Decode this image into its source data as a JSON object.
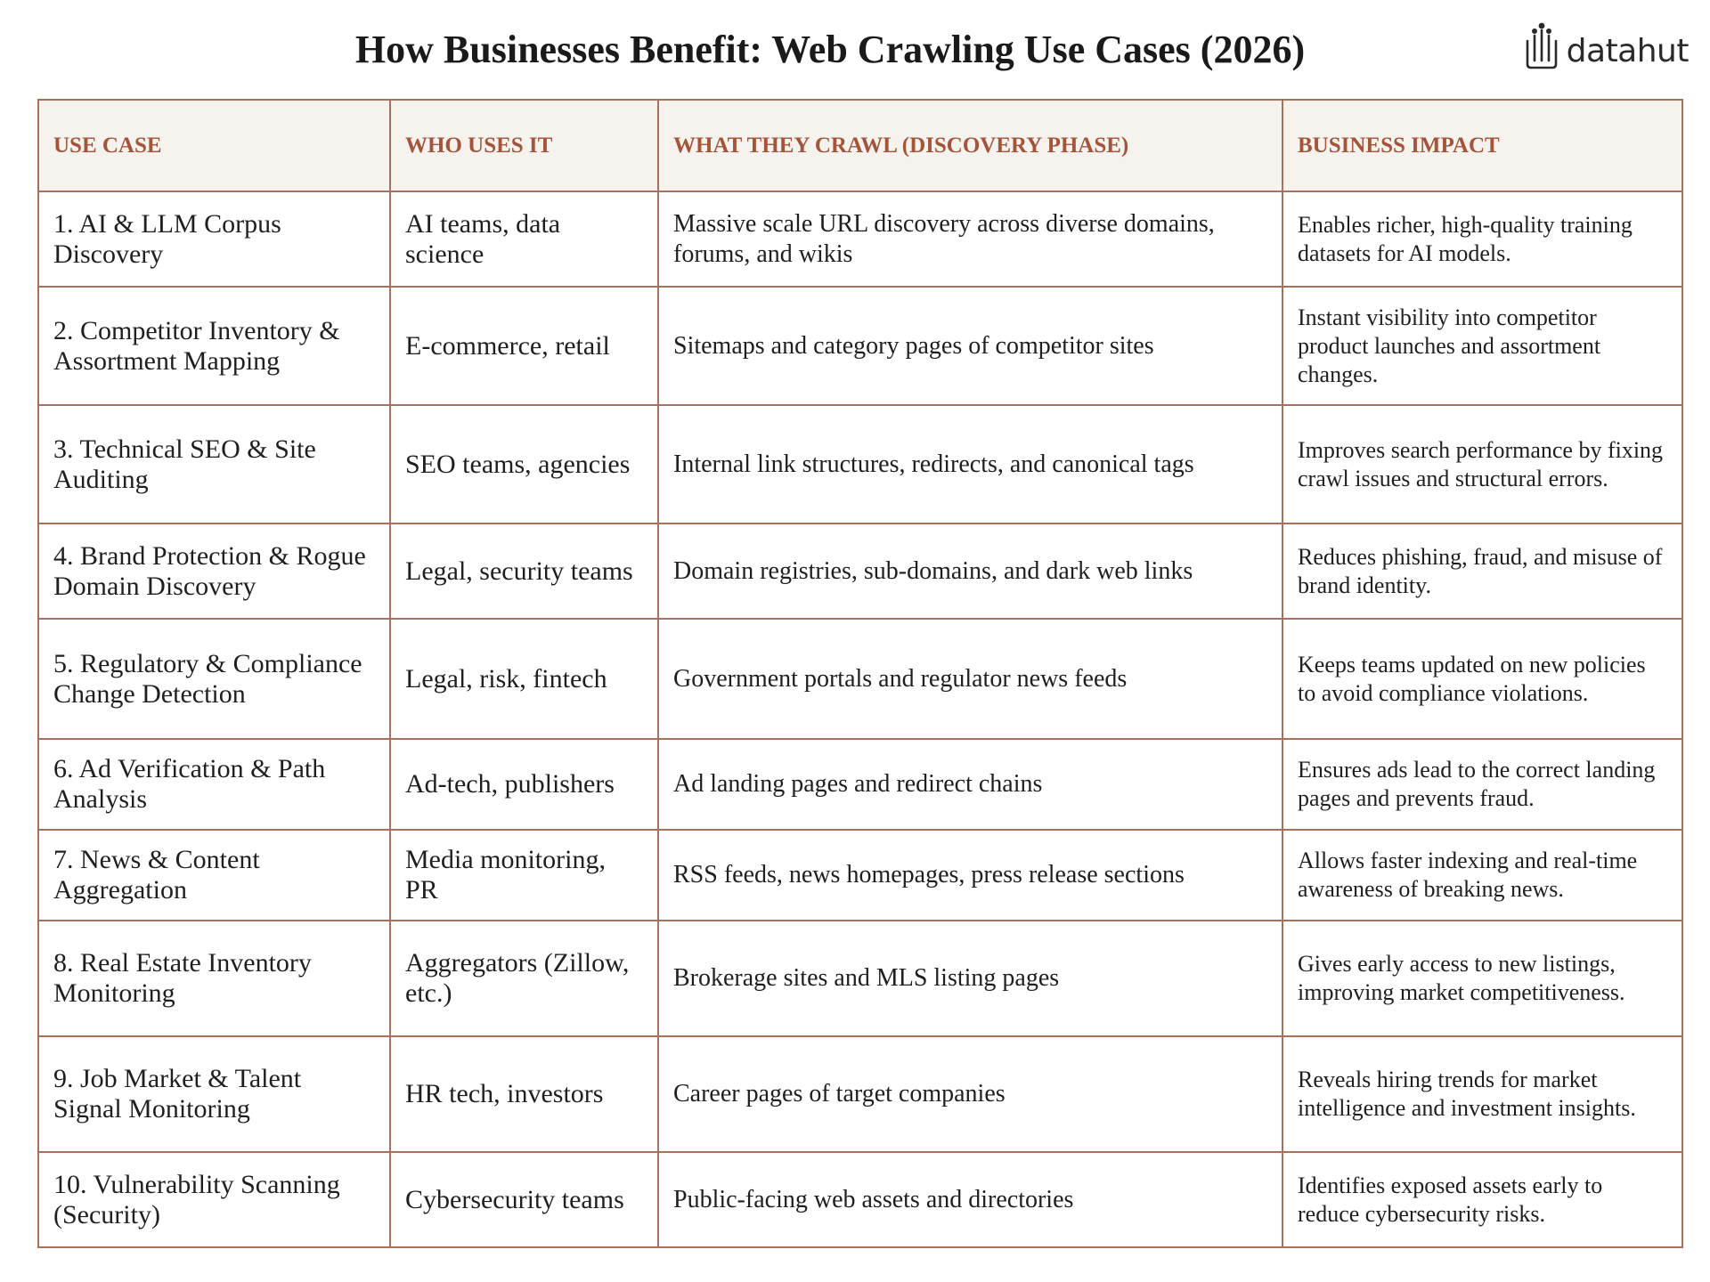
{
  "page": {
    "title": "How Businesses Benefit: Web Crawling Use Cases (2026)"
  },
  "logo": {
    "text": "datahut",
    "icon": "datahut-logo-icon"
  },
  "colors": {
    "header_text": "#a3543a",
    "header_bg": "#f6f3ef",
    "border": "#a9705e",
    "body_text": "#1f1f1f"
  },
  "table": {
    "headers": [
      "USE CASE",
      "WHO USES IT",
      "WHAT THEY CRAWL (DISCOVERY PHASE)",
      "BUSINESS IMPACT"
    ],
    "rows": [
      {
        "use_case": "1. AI & LLM Corpus Discovery",
        "who": "AI teams, data science",
        "crawl": "Massive scale URL discovery across diverse domains, forums, and wikis",
        "impact": "Enables richer, high-quality training datasets for AI models."
      },
      {
        "use_case": "2. Competitor Inventory & Assortment Mapping",
        "who": "E-commerce, retail",
        "crawl": "Sitemaps and category pages of competitor sites",
        "impact": "Instant visibility into competitor product launches and assortment changes."
      },
      {
        "use_case": "3. Technical SEO & Site Auditing",
        "who": "SEO teams, agencies",
        "crawl": "Internal link structures, redirects, and canonical tags",
        "impact": "Improves search performance by fixing crawl issues and structural errors."
      },
      {
        "use_case": "4. Brand Protection & Rogue Domain Discovery",
        "who": "Legal, security teams",
        "crawl": "Domain registries, sub-domains, and dark web links",
        "impact": "Reduces phishing, fraud, and misuse of brand identity."
      },
      {
        "use_case": "5. Regulatory & Compliance Change Detection",
        "who": "Legal, risk, fintech",
        "crawl": "Government portals and regulator news feeds",
        "impact": "Keeps teams updated on new policies to avoid compliance violations."
      },
      {
        "use_case": "6. Ad Verification & Path Analysis",
        "who": "Ad-tech, publishers",
        "crawl": "Ad landing pages and redirect chains",
        "impact": "Ensures ads lead to the correct landing pages and prevents fraud."
      },
      {
        "use_case": "7. News & Content Aggregation",
        "who": "Media monitoring, PR",
        "crawl": "RSS feeds, news homepages, press release sections",
        "impact": "Allows faster indexing and real-time awareness of breaking news."
      },
      {
        "use_case": "8. Real Estate Inventory Monitoring",
        "who": "Aggregators (Zillow, etc.)",
        "crawl": "Brokerage sites and MLS listing pages",
        "impact": "Gives early access to new listings, improving market competitiveness."
      },
      {
        "use_case": "9. Job Market & Talent Signal Monitoring",
        "who": "HR tech, investors",
        "crawl": "Career pages of target companies",
        "impact": "Reveals hiring trends for market intelligence and investment insights."
      },
      {
        "use_case": "10. Vulnerability Scanning (Security)",
        "who": "Cybersecurity teams",
        "crawl": "Public-facing web assets and directories",
        "impact": "Identifies exposed assets early to reduce cybersecurity risks."
      }
    ]
  }
}
